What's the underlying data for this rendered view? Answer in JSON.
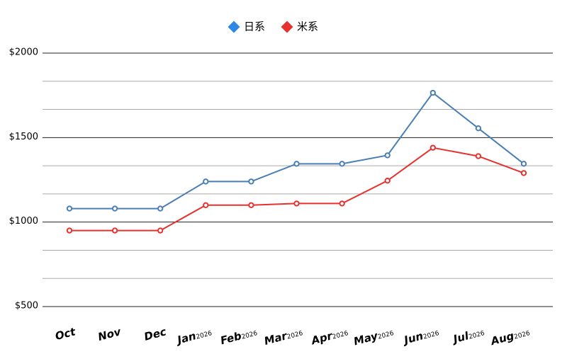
{
  "chart_data": {
    "type": "line",
    "categories": [
      "Oct",
      "Nov",
      "Dec",
      "Jan",
      "Feb",
      "Mar",
      "Apr",
      "May",
      "Jun",
      "Jul",
      "Aug"
    ],
    "category_years": [
      null,
      null,
      null,
      "2026",
      "2026",
      "2026",
      "2026",
      "2026",
      "2026",
      "2026",
      "2026"
    ],
    "series": [
      {
        "name": "日系",
        "color": "#4a7eb5",
        "values": [
          1080,
          1080,
          1080,
          1240,
          1240,
          1345,
          1345,
          1395,
          1765,
          1555,
          1345
        ]
      },
      {
        "name": "米系",
        "color": "#e8312e",
        "values": [
          950,
          950,
          950,
          1100,
          1100,
          1110,
          1110,
          1245,
          1440,
          1390,
          1290
        ]
      }
    ],
    "legend_markers": {
      "blue": "#2e86e6",
      "red": "#e8312e"
    },
    "ylim": [
      500,
      2000
    ],
    "yticks": [
      {
        "value": 500,
        "label": "$500"
      },
      {
        "value": 1000,
        "label": "$1000"
      },
      {
        "value": 1500,
        "label": "$1500"
      },
      {
        "value": 2000,
        "label": "$2000"
      }
    ],
    "minor_grid": [
      666.67,
      833.33,
      1166.67,
      1333.33,
      1666.67,
      1833.33
    ],
    "grid": true,
    "legend": "top"
  }
}
